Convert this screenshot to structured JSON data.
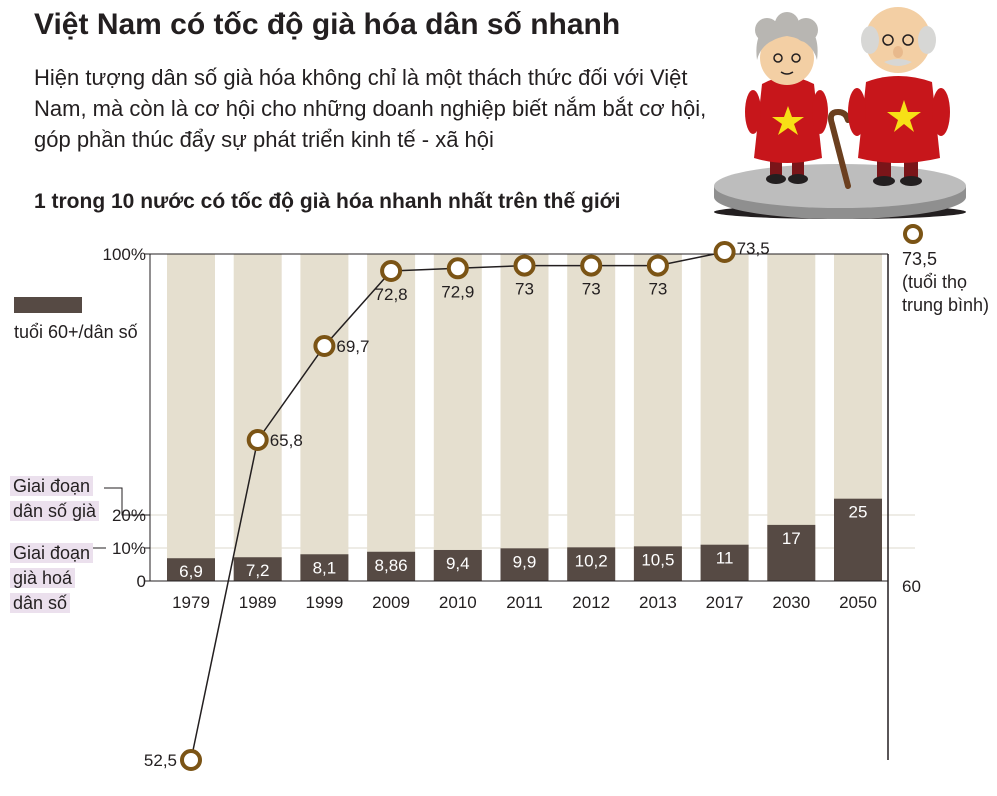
{
  "title": "Việt Nam có tốc độ già hóa dân số nhanh",
  "intro": "Hiện tượng dân số già hóa không chỉ là một thách thức đối với Việt Nam, mà còn là cơ hội cho những doanh nghiệp biết nắm bắt cơ hội, góp phần thúc đẩy sự phát triển kinh tế - xã hội",
  "subtitle": "1 trong 10 nước có tốc độ già hóa nhanh nhất trên thế giới",
  "legend": {
    "bar_label": "tuổi 60+/dân số"
  },
  "stages": {
    "old": [
      "Giai đoạn",
      "dân số già"
    ],
    "aging": [
      "Giai đoạn",
      "già hoá",
      "dân số"
    ]
  },
  "life_expectancy_legend": {
    "value": "73,5",
    "note": [
      "(tuổi thọ",
      "trung bình)"
    ]
  },
  "colors": {
    "bar_fill": "#564a44",
    "bar_background": "#e5dfcf",
    "marker": "#7b5415",
    "stage_highlight": "#ebe0ed",
    "axis": "#231f20",
    "reference_line": "#dcd8cc"
  },
  "chart_data": {
    "type": "bar",
    "categories": [
      "1979",
      "1989",
      "1999",
      "2009",
      "2010",
      "2011",
      "2012",
      "2013",
      "2017",
      "2030",
      "2050"
    ],
    "series": [
      {
        "name": "tuổi 60+/dân số",
        "values": [
          6.9,
          7.2,
          8.1,
          8.86,
          9.4,
          9.9,
          10.2,
          10.5,
          11,
          17,
          25
        ],
        "value_labels": [
          "6,9",
          "7,2",
          "8,1",
          "8,86",
          "9,4",
          "9,9",
          "10,2",
          "10,5",
          "11",
          "17",
          "25"
        ],
        "axis": "left"
      },
      {
        "name": "tuổi thọ trung bình",
        "type": "line",
        "values": [
          52.5,
          65.8,
          69.7,
          72.8,
          72.9,
          73,
          73,
          73,
          73.5,
          null,
          null
        ],
        "value_labels": [
          "52,5",
          "65,8",
          "69,7",
          "72,8",
          "72,9",
          "73",
          "73",
          "73",
          "73,5",
          null,
          null
        ],
        "axis": "right"
      }
    ],
    "left_axis": {
      "ticks": [
        "0",
        "10%",
        "20%",
        "100%"
      ],
      "values": [
        0,
        10,
        20,
        100
      ]
    },
    "right_axis": {
      "ticks": [
        "60"
      ],
      "values": [
        60
      ]
    },
    "reference_lines": [
      10,
      20
    ],
    "grid": false,
    "legend_position": "left"
  }
}
